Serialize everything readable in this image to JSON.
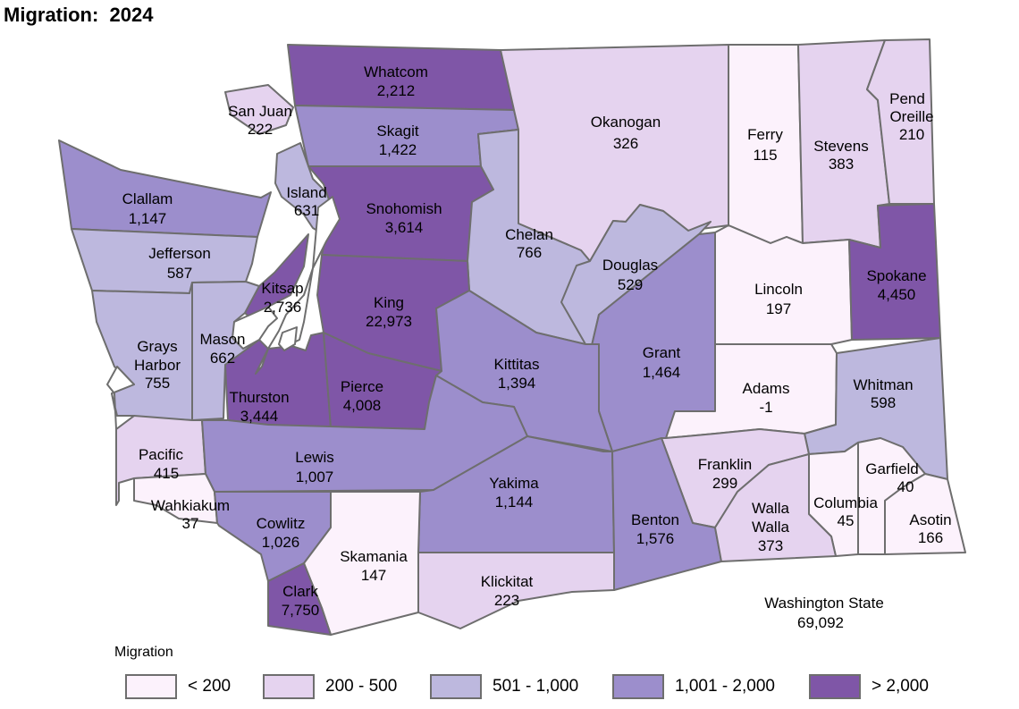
{
  "title": "Migration:  2024",
  "legend": {
    "title": "Migration",
    "items": [
      {
        "label": "< 200",
        "color": "#fcf2fc"
      },
      {
        "label": "200 - 500",
        "color": "#e5d3ef"
      },
      {
        "label": "501 - 1,000",
        "color": "#bdb8de"
      },
      {
        "label": "1,001 - 2,000",
        "color": "#9c8ecc"
      },
      {
        "label": "> 2,000",
        "color": "#7f56a7"
      }
    ]
  },
  "counties": [
    {
      "name": "Whatcom",
      "value": "2,212",
      "bin": 4
    },
    {
      "name": "San Juan",
      "value": "222",
      "bin": 1
    },
    {
      "name": "Skagit",
      "value": "1,422",
      "bin": 3
    },
    {
      "name": "Okanogan",
      "value": "326",
      "bin": 1
    },
    {
      "name": "Ferry",
      "value": "115",
      "bin": 0
    },
    {
      "name": "Stevens",
      "value": "383",
      "bin": 1
    },
    {
      "name": "Pend Oreille",
      "value": "210",
      "bin": 1
    },
    {
      "name": "Clallam",
      "value": "1,147",
      "bin": 3
    },
    {
      "name": "Island",
      "value": "631",
      "bin": 2
    },
    {
      "name": "Snohomish",
      "value": "3,614",
      "bin": 4
    },
    {
      "name": "Chelan",
      "value": "766",
      "bin": 2
    },
    {
      "name": "Jefferson",
      "value": "587",
      "bin": 2
    },
    {
      "name": "Douglas",
      "value": "529",
      "bin": 2
    },
    {
      "name": "Lincoln",
      "value": "197",
      "bin": 0
    },
    {
      "name": "Spokane",
      "value": "4,450",
      "bin": 4
    },
    {
      "name": "Kitsap",
      "value": "2,736",
      "bin": 4
    },
    {
      "name": "King",
      "value": "22,973",
      "bin": 4
    },
    {
      "name": "Grays Harbor",
      "value": "755",
      "bin": 2
    },
    {
      "name": "Mason",
      "value": "662",
      "bin": 2
    },
    {
      "name": "Grant",
      "value": "1,464",
      "bin": 3
    },
    {
      "name": "Kittitas",
      "value": "1,394",
      "bin": 3
    },
    {
      "name": "Adams",
      "value": "-1",
      "bin": 0
    },
    {
      "name": "Whitman",
      "value": "598",
      "bin": 2
    },
    {
      "name": "Thurston",
      "value": "3,444",
      "bin": 4
    },
    {
      "name": "Pierce",
      "value": "4,008",
      "bin": 4
    },
    {
      "name": "Pacific",
      "value": "415",
      "bin": 1
    },
    {
      "name": "Lewis",
      "value": "1,007",
      "bin": 3
    },
    {
      "name": "Franklin",
      "value": "299",
      "bin": 1
    },
    {
      "name": "Garfield",
      "value": "40",
      "bin": 0
    },
    {
      "name": "Yakima",
      "value": "1,144",
      "bin": 3
    },
    {
      "name": "Wahkiakum",
      "value": "37",
      "bin": 0
    },
    {
      "name": "Columbia",
      "value": "45",
      "bin": 0
    },
    {
      "name": "Cowlitz",
      "value": "1,026",
      "bin": 3
    },
    {
      "name": "Benton",
      "value": "1,576",
      "bin": 3
    },
    {
      "name": "Walla Walla",
      "value": "373",
      "bin": 1
    },
    {
      "name": "Asotin",
      "value": "166",
      "bin": 0
    },
    {
      "name": "Skamania",
      "value": "147",
      "bin": 0
    },
    {
      "name": "Klickitat",
      "value": "223",
      "bin": 1
    },
    {
      "name": "Clark",
      "value": "7,750",
      "bin": 4
    }
  ],
  "state_total": {
    "name": "Washington State",
    "value": "69,092"
  }
}
